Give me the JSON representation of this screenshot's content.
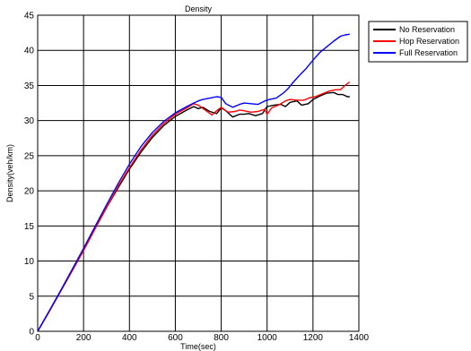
{
  "chart_data": {
    "type": "line",
    "title": "Density",
    "xlabel": "Time(sec)",
    "ylabel": "Density(veh/km)",
    "xlim": [
      0,
      1400
    ],
    "ylim": [
      0,
      45
    ],
    "xticks": [
      0,
      200,
      400,
      600,
      800,
      1000,
      1200,
      1400
    ],
    "yticks": [
      0,
      5,
      10,
      15,
      20,
      25,
      30,
      35,
      40,
      45
    ],
    "grid": true,
    "legend_position": "outside-top-right",
    "series": [
      {
        "name": "No Reservation",
        "color": "#000000",
        "x": [
          0,
          50,
          100,
          150,
          200,
          250,
          300,
          350,
          400,
          450,
          500,
          550,
          600,
          650,
          680,
          700,
          720,
          750,
          780,
          800,
          820,
          850,
          880,
          900,
          920,
          950,
          980,
          1000,
          1030,
          1060,
          1080,
          1100,
          1130,
          1150,
          1180,
          1200,
          1230,
          1260,
          1290,
          1310,
          1330,
          1350,
          1360
        ],
        "y": [
          0,
          2.8,
          5.7,
          8.6,
          11.5,
          14.6,
          17.6,
          20.4,
          23.1,
          25.5,
          27.6,
          29.3,
          30.6,
          31.5,
          32.0,
          31.7,
          31.9,
          31.3,
          31.0,
          31.8,
          31.4,
          30.5,
          30.9,
          30.9,
          31.0,
          30.7,
          31.0,
          32.0,
          32.2,
          32.3,
          32.0,
          32.6,
          32.8,
          32.2,
          32.4,
          33.0,
          33.5,
          33.9,
          34.0,
          33.7,
          33.7,
          33.4,
          33.4
        ]
      },
      {
        "name": "Hop Reservation",
        "color": "#ff0000",
        "x": [
          0,
          50,
          100,
          150,
          200,
          250,
          300,
          350,
          400,
          450,
          500,
          550,
          600,
          650,
          680,
          700,
          730,
          760,
          780,
          800,
          830,
          860,
          880,
          900,
          930,
          960,
          990,
          1000,
          1020,
          1050,
          1080,
          1100,
          1130,
          1160,
          1190,
          1210,
          1240,
          1270,
          1300,
          1320,
          1340,
          1360
        ],
        "y": [
          0,
          2.8,
          5.7,
          8.6,
          11.5,
          14.6,
          17.6,
          20.6,
          23.3,
          25.8,
          27.9,
          29.6,
          30.9,
          31.8,
          32.4,
          32.2,
          31.5,
          30.8,
          31.4,
          31.9,
          31.2,
          31.3,
          31.5,
          31.4,
          31.2,
          31.3,
          31.6,
          30.9,
          31.8,
          32.2,
          32.8,
          33.0,
          32.9,
          32.9,
          33.3,
          33.4,
          33.8,
          34.2,
          34.4,
          34.4,
          35.0,
          35.5
        ]
      },
      {
        "name": "Full Reservation",
        "color": "#0000ff",
        "x": [
          0,
          50,
          100,
          150,
          200,
          250,
          300,
          350,
          400,
          450,
          500,
          550,
          600,
          650,
          680,
          700,
          720,
          750,
          780,
          800,
          820,
          850,
          880,
          900,
          930,
          960,
          990,
          1010,
          1040,
          1070,
          1090,
          1110,
          1140,
          1170,
          1200,
          1230,
          1260,
          1290,
          1320,
          1340,
          1360
        ],
        "y": [
          0,
          2.9,
          5.8,
          8.8,
          11.8,
          14.9,
          18.0,
          21.0,
          23.8,
          26.3,
          28.3,
          29.9,
          31.1,
          32.0,
          32.5,
          32.8,
          33.0,
          33.2,
          33.4,
          33.3,
          32.4,
          31.9,
          32.3,
          32.5,
          32.4,
          32.3,
          32.8,
          33.0,
          33.2,
          33.9,
          34.5,
          35.3,
          36.4,
          37.4,
          38.6,
          39.7,
          40.5,
          41.3,
          42.0,
          42.2,
          42.3
        ]
      }
    ]
  }
}
